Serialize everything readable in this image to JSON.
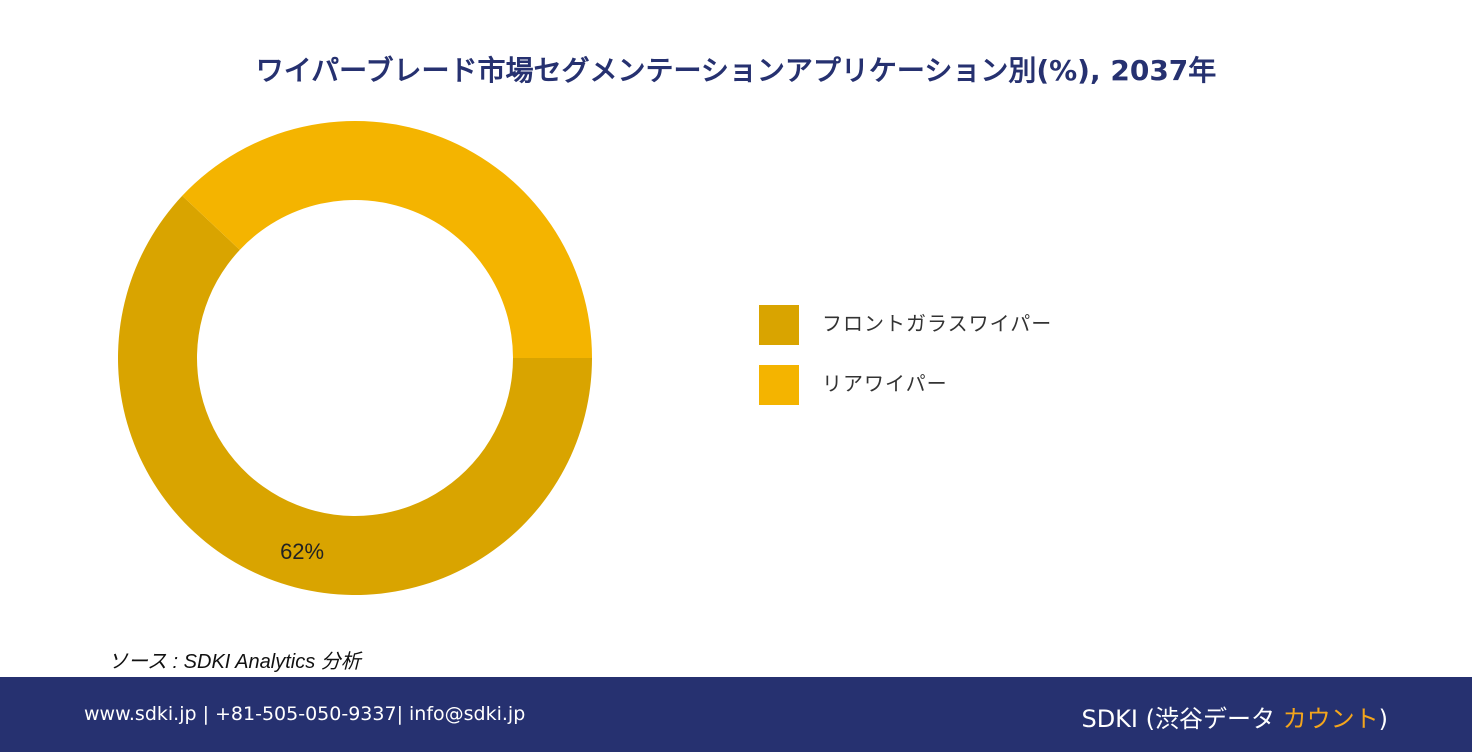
{
  "chart_data": {
    "type": "donut",
    "title": "ワイパーブレード市場セグメンテーションアプリケーション別(%), 2037年",
    "categories": [
      "フロントガラスワイパー",
      "リアワイパー"
    ],
    "values": [
      62,
      38
    ],
    "value_labels": [
      "62%",
      null
    ],
    "colors": [
      "#d9a400",
      "#f4b400"
    ]
  },
  "source": "ソース : SDKI Analytics 分析",
  "footer": {
    "contact": "www.sdki.jp | +81-505-050-9337| info@sdki.jp",
    "brand": "SDKI (渋谷データ ",
    "brand_highlight": "カウント",
    "brand_close": ")"
  }
}
